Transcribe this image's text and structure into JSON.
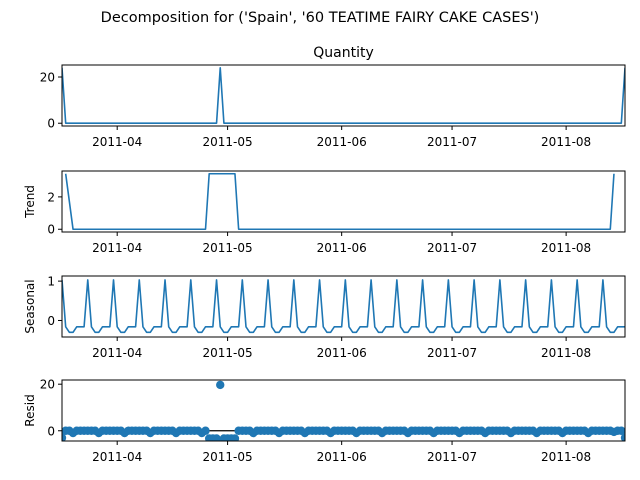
{
  "suptitle": "Decomposition for ('Spain', '60 TEATIME FAIRY CAKE CASES')",
  "x_start": "2011-03-17",
  "x_end": "2011-08-17",
  "x_ticks": [
    {
      "label": "2011-04",
      "date": "2011-04-01"
    },
    {
      "label": "2011-05",
      "date": "2011-05-01"
    },
    {
      "label": "2011-06",
      "date": "2011-06-01"
    },
    {
      "label": "2011-07",
      "date": "2011-07-01"
    },
    {
      "label": "2011-08",
      "date": "2011-08-01"
    }
  ],
  "colors": {
    "series": "#1f77b4",
    "axis": "#000000"
  },
  "chart_data": [
    {
      "type": "line",
      "title": "Quantity",
      "ylabel": "",
      "ylim": [
        -1.2,
        25.2
      ],
      "yticks": [
        0,
        20
      ],
      "x": [
        "2011-03-17",
        "2011-03-18",
        "2011-04-28",
        "2011-04-29",
        "2011-04-30",
        "2011-08-16",
        "2011-08-17"
      ],
      "values": [
        24,
        0,
        0,
        24,
        0,
        0,
        24
      ]
    },
    {
      "type": "line",
      "title": "",
      "ylabel": "Trend",
      "ylim": [
        -0.17,
        3.6
      ],
      "yticks": [
        0,
        2
      ],
      "x": [
        "2011-03-18",
        "2011-03-20",
        "2011-04-25",
        "2011-04-26",
        "2011-05-03",
        "2011-05-04",
        "2011-08-13",
        "2011-08-14"
      ],
      "values": [
        3.43,
        0,
        0,
        3.43,
        3.43,
        0,
        0,
        3.43
      ]
    },
    {
      "type": "line",
      "title": "",
      "ylabel": "Seasonal",
      "ylim": [
        -0.42,
        1.13
      ],
      "yticks": [
        0,
        1
      ],
      "x": [
        "2011-03-17",
        "2011-08-17"
      ],
      "pattern": [
        1.03,
        -0.16,
        -0.3,
        -0.3,
        -0.16,
        -0.16,
        -0.16
      ],
      "period_days": 7
    },
    {
      "type": "scatter",
      "title": "",
      "ylabel": "Resid",
      "ylim": [
        -4.4,
        21.8
      ],
      "yticks": [
        0,
        20
      ],
      "zero_line": true,
      "x": [
        "2011-03-17",
        "2011-08-17"
      ],
      "pattern": [
        0.0,
        0.0,
        0.0,
        -1.0,
        0.0,
        0.0,
        0.0
      ],
      "overrides": [
        {
          "date": "2011-03-17",
          "value": -3.0
        },
        {
          "date": "2011-04-26",
          "value": -3.3
        },
        {
          "date": "2011-04-27",
          "value": -3.3
        },
        {
          "date": "2011-04-28",
          "value": -3.3
        },
        {
          "date": "2011-04-29",
          "value": 19.7
        },
        {
          "date": "2011-04-30",
          "value": -3.3
        },
        {
          "date": "2011-05-01",
          "value": -3.3
        },
        {
          "date": "2011-05-02",
          "value": -3.3
        },
        {
          "date": "2011-05-03",
          "value": -3.3
        },
        {
          "date": "2011-08-14",
          "value": -0.5
        },
        {
          "date": "2011-08-15",
          "value": 0.0
        },
        {
          "date": "2011-08-16",
          "value": 0.0
        },
        {
          "date": "2011-08-17",
          "value": -3.0
        }
      ]
    }
  ]
}
